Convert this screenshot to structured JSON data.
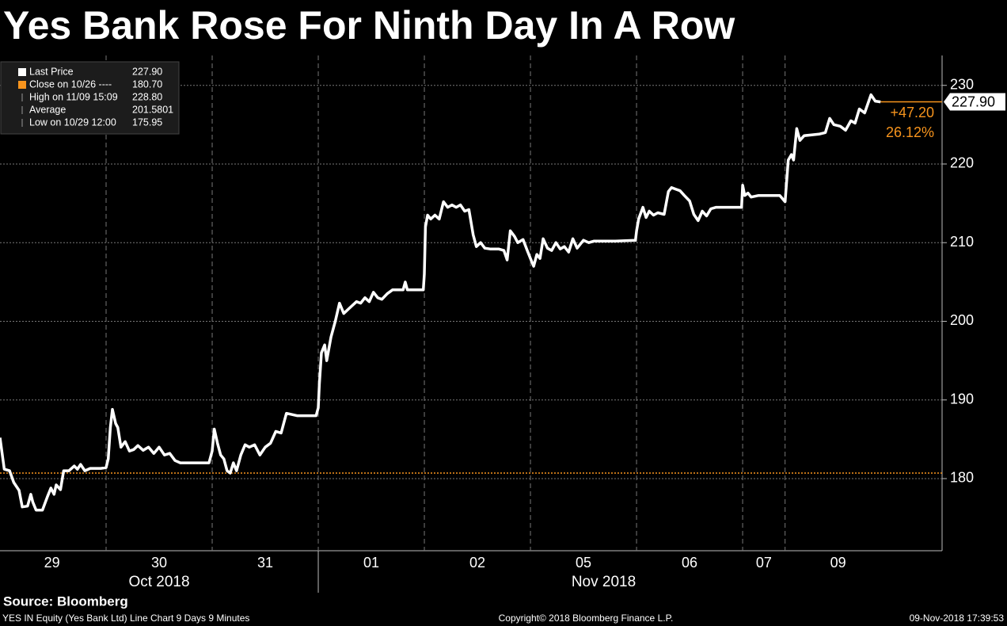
{
  "chart_data": {
    "type": "line",
    "title": "Yes Bank Rose For Ninth Day In A Row",
    "series": [
      {
        "color": "#ffffff",
        "x": [
          0.0,
          0.04,
          0.09,
          0.13,
          0.18,
          0.21,
          0.26,
          0.29,
          0.31,
          0.34,
          0.4,
          0.45,
          0.48,
          0.51,
          0.53,
          0.57,
          0.6,
          0.65,
          0.7,
          0.73,
          0.76,
          0.8,
          0.85,
          0.95,
          1.0,
          1.02,
          1.04,
          1.06,
          1.09,
          1.11,
          1.14,
          1.18,
          1.22,
          1.26,
          1.3,
          1.35,
          1.4,
          1.45,
          1.5,
          1.55,
          1.6,
          1.65,
          1.7,
          1.8,
          1.97,
          2.0,
          2.02,
          2.05,
          2.08,
          2.11,
          2.14,
          2.17,
          2.2,
          2.23,
          2.27,
          2.31,
          2.35,
          2.4,
          2.45,
          2.5,
          2.55,
          2.6,
          2.65,
          2.7,
          2.8,
          2.98,
          3.0,
          3.01,
          3.03,
          3.06,
          3.08,
          3.12,
          3.16,
          3.2,
          3.24,
          3.28,
          3.32,
          3.36,
          3.4,
          3.44,
          3.48,
          3.52,
          3.56,
          3.6,
          3.65,
          3.7,
          3.8,
          3.82,
          3.84,
          3.99,
          4.0,
          4.01,
          4.03,
          4.06,
          4.1,
          4.14,
          4.18,
          4.22,
          4.26,
          4.3,
          4.34,
          4.38,
          4.42,
          4.46,
          4.49,
          4.53,
          4.57,
          4.62,
          4.7,
          4.75,
          4.78,
          4.81,
          4.85,
          4.88,
          4.93,
          4.97,
          5.0,
          5.03,
          5.06,
          5.09,
          5.12,
          5.16,
          5.2,
          5.24,
          5.28,
          5.32,
          5.36,
          5.4,
          5.44,
          5.5,
          5.55,
          5.6,
          5.7,
          5.8,
          5.99,
          6.0,
          6.02,
          6.06,
          6.09,
          6.12,
          6.16,
          6.2,
          6.26,
          6.3,
          6.33,
          6.37,
          6.41,
          6.45,
          6.5,
          6.54,
          6.58,
          6.62,
          6.66,
          6.7,
          6.75,
          6.85,
          6.99,
          7.0,
          7.02,
          7.05,
          7.08,
          7.15,
          7.25,
          7.35,
          7.4,
          7.43,
          7.46,
          7.48,
          7.51,
          7.54,
          7.58,
          7.65,
          7.72,
          7.78,
          7.82,
          7.86,
          7.92,
          7.97,
          8.02,
          8.06,
          8.1,
          8.15,
          8.21,
          8.25,
          8.3
        ],
        "values": [
          185.2,
          181.2,
          181.0,
          179.5,
          178.5,
          176.4,
          176.5,
          178.0,
          177.0,
          176.0,
          176.0,
          177.8,
          178.8,
          178.0,
          179.2,
          178.6,
          181.0,
          181.0,
          181.6,
          181.2,
          181.8,
          181.0,
          181.3,
          181.3,
          181.4,
          182.5,
          186.5,
          188.8,
          187.0,
          186.5,
          184.0,
          184.7,
          183.5,
          183.7,
          184.2,
          183.6,
          184.0,
          183.2,
          184.0,
          183.0,
          183.2,
          182.3,
          182.0,
          182.0,
          182.0,
          183.5,
          186.3,
          184.5,
          183.0,
          182.5,
          181.0,
          180.7,
          182.0,
          181.0,
          183.0,
          184.3,
          184.0,
          184.3,
          183.0,
          184.0,
          184.5,
          186.0,
          185.8,
          188.3,
          188.0,
          188.0,
          189.0,
          192.0,
          196.0,
          197.0,
          195.0,
          198.0,
          200.0,
          202.3,
          201.0,
          201.5,
          202.0,
          202.5,
          202.3,
          203.0,
          202.5,
          203.7,
          203.0,
          202.8,
          203.5,
          204.0,
          204.0,
          205.0,
          204.0,
          204.0,
          206.0,
          212.0,
          213.5,
          213.0,
          213.5,
          213.0,
          215.2,
          214.5,
          214.8,
          214.5,
          214.8,
          214.0,
          214.2,
          211.0,
          209.5,
          210.0,
          209.3,
          209.2,
          209.2,
          209.0,
          207.8,
          211.5,
          210.8,
          210.0,
          210.4,
          209.0,
          208.0,
          207.0,
          208.5,
          208.0,
          210.5,
          209.3,
          209.0,
          210.0,
          209.2,
          209.5,
          208.8,
          210.5,
          209.3,
          210.3,
          210.0,
          210.2,
          210.2,
          210.2,
          210.3,
          211.5,
          213.0,
          214.5,
          213.2,
          214.0,
          213.5,
          213.8,
          213.6,
          216.5,
          217.0,
          216.8,
          216.6,
          216.0,
          215.3,
          213.6,
          212.8,
          214.0,
          213.4,
          214.3,
          214.5,
          214.5,
          214.5,
          217.3,
          216.0,
          216.3,
          215.8,
          216.0,
          216.0,
          216.0,
          215.2,
          220.5,
          221.2,
          220.5,
          224.5,
          223.0,
          223.6,
          223.7,
          223.8,
          224.0,
          225.8,
          225.0,
          224.8,
          224.3,
          225.5,
          225.2,
          227.0,
          226.5,
          228.8,
          228.0,
          227.9
        ]
      }
    ],
    "xlim": [
      0,
      8.88
    ],
    "xticks": [
      {
        "value": 0.49,
        "label": "29"
      },
      {
        "value": 1.5,
        "label": "30"
      },
      {
        "value": 2.5,
        "label": "31"
      },
      {
        "value": 3.5,
        "label": "01"
      },
      {
        "value": 4.5,
        "label": "02"
      },
      {
        "value": 5.5,
        "label": "05"
      },
      {
        "value": 6.5,
        "label": "06"
      },
      {
        "value": 7.2,
        "label": "07"
      },
      {
        "value": 7.9,
        "label": "09"
      }
    ],
    "x_gridlines": [
      1,
      2,
      4,
      5,
      6,
      7,
      7.4
    ],
    "month_boundary": 3,
    "months": [
      {
        "value": 1.5,
        "label": "Oct 2018"
      },
      {
        "value": 5.69,
        "label": "Nov 2018"
      }
    ],
    "ylim": [
      170.83,
      233.8
    ],
    "yticks": [
      180,
      190,
      200,
      210,
      220,
      230
    ],
    "grid": true,
    "close_line": {
      "value": 180.7,
      "color": "#f7941d"
    },
    "last_line": {
      "value": 227.9,
      "label": "227.90"
    },
    "change_labels": [
      "+47.20",
      "26.12%"
    ],
    "legend": [
      {
        "label": "Last Price",
        "value": "227.90"
      },
      {
        "label": "Close on 10/26 ----",
        "value": "180.70"
      },
      {
        "label": "High on 11/09 15:09",
        "value": "228.80"
      },
      {
        "label": "Average",
        "value": "201.5801"
      },
      {
        "label": "Low on 10/29 12:00",
        "value": "175.95"
      }
    ],
    "source": "Source: Bloomberg",
    "footer": [
      "YES IN Equity (Yes Bank Ltd) Line Chart 9 Days 9 Minutes",
      "Copyright© 2018 Bloomberg Finance L.P.",
      "09-Nov-2018 17:39:53"
    ]
  }
}
